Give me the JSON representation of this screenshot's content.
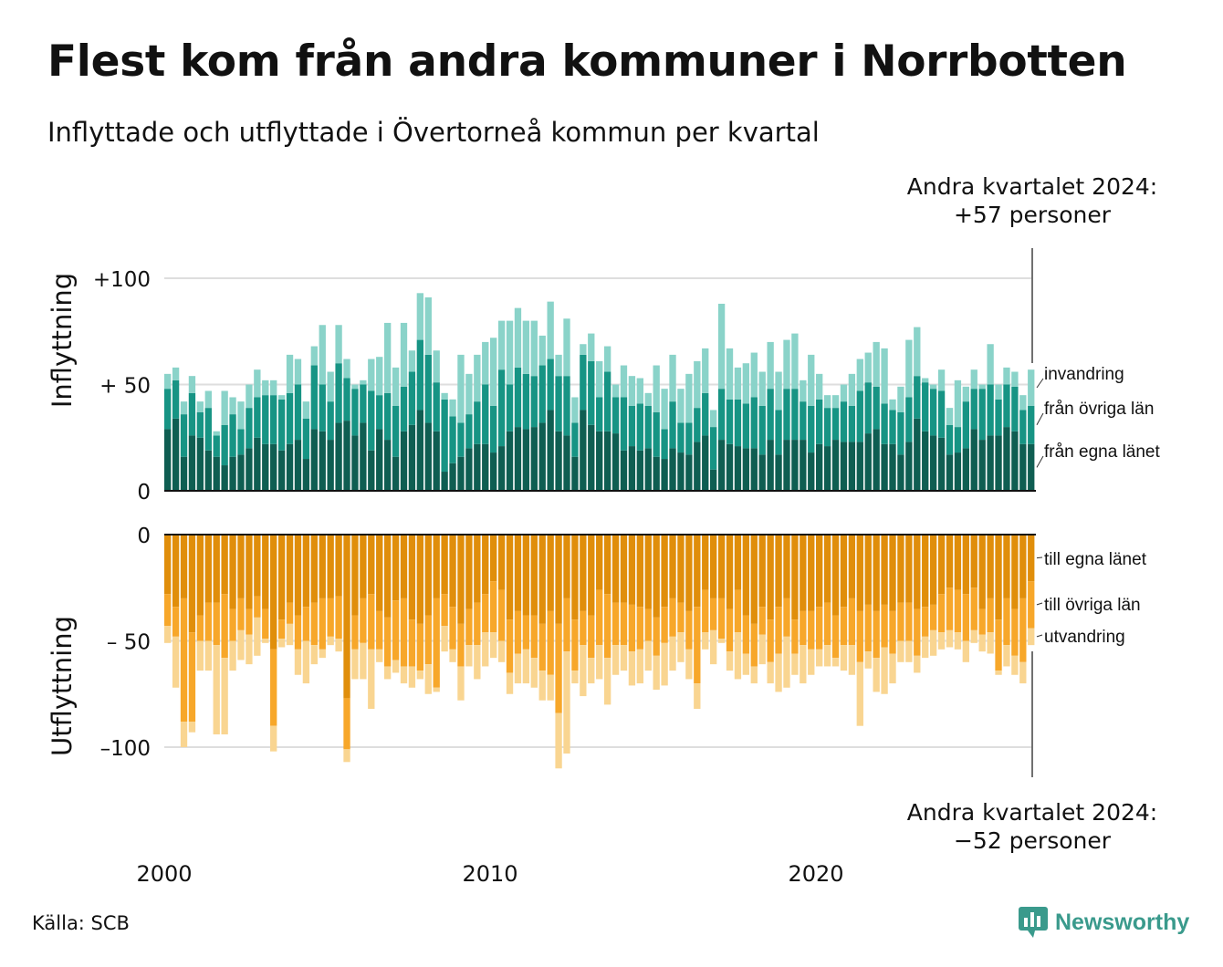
{
  "title": "Flest kom från andra kommuner i Norrbotten",
  "subtitle": "Inflyttade och utflyttade i Övertorneå kommun per kvartal",
  "source": "Källa: SCB",
  "brand": "Newsworthy",
  "colors": {
    "in_egna": "#0f5e52",
    "in_ovriga": "#179484",
    "in_invandring": "#8ad3c9",
    "out_egna": "#e08e0b",
    "out_ovriga": "#f7a72a",
    "out_utvandring": "#f9d591",
    "grid": "#dedede",
    "brand": "#3a9a8c"
  },
  "annotations": {
    "top": [
      "Andra kvartalet 2024:",
      "+57 personer"
    ],
    "bottom": [
      "Andra kvartalet 2024:",
      "−52 personer"
    ]
  },
  "chart_data": [
    {
      "type": "bar",
      "stacked": true,
      "ylabel": "Inflyttning",
      "ylim": [
        0,
        110
      ],
      "yticks": [
        0,
        50,
        100
      ],
      "ytick_labels": [
        "0",
        "+ 50",
        "+100"
      ],
      "grid": true,
      "series_labels_position": "right",
      "series": [
        {
          "name": "från egna länet",
          "values": [
            29,
            34,
            16,
            26,
            25,
            19,
            16,
            12,
            16,
            17,
            20,
            25,
            22,
            22,
            19,
            22,
            24,
            15,
            29,
            28,
            24,
            32,
            33,
            26,
            32,
            19,
            29,
            24,
            16,
            28,
            31,
            38,
            32,
            28,
            9,
            13,
            16,
            20,
            22,
            22,
            18,
            21,
            28,
            30,
            29,
            30,
            32,
            38,
            28,
            26,
            16,
            38,
            31,
            28,
            28,
            27,
            19,
            21,
            19,
            20,
            16,
            15,
            20,
            18,
            17,
            23,
            26,
            10,
            24,
            22,
            21,
            20,
            20,
            17,
            24,
            17,
            24,
            24,
            24,
            18,
            22,
            21,
            24,
            23,
            23,
            23,
            27,
            29,
            22,
            22,
            17,
            23,
            34,
            28,
            26,
            25,
            17,
            18,
            20,
            29,
            24,
            26,
            26,
            30,
            28,
            22,
            22
          ]
        },
        {
          "name": "från övriga län",
          "values": [
            19,
            18,
            20,
            20,
            12,
            20,
            10,
            19,
            20,
            12,
            19,
            19,
            23,
            23,
            24,
            24,
            26,
            19,
            30,
            22,
            18,
            28,
            20,
            22,
            18,
            28,
            16,
            22,
            24,
            21,
            25,
            33,
            32,
            23,
            34,
            22,
            16,
            16,
            20,
            28,
            22,
            36,
            22,
            28,
            26,
            24,
            27,
            24,
            26,
            28,
            16,
            26,
            30,
            16,
            28,
            17,
            25,
            19,
            22,
            20,
            21,
            14,
            22,
            14,
            15,
            16,
            20,
            20,
            24,
            21,
            22,
            21,
            24,
            23,
            24,
            21,
            24,
            24,
            18,
            22,
            21,
            18,
            15,
            19,
            17,
            24,
            24,
            20,
            19,
            16,
            20,
            21,
            20,
            23,
            22,
            22,
            14,
            12,
            22,
            19,
            24,
            24,
            17,
            20,
            21,
            16,
            18
          ]
        },
        {
          "name": "invandring",
          "values": [
            7,
            6,
            6,
            8,
            5,
            8,
            2,
            16,
            8,
            13,
            11,
            13,
            7,
            7,
            2,
            18,
            12,
            8,
            9,
            28,
            14,
            18,
            9,
            2,
            2,
            15,
            18,
            33,
            18,
            30,
            10,
            22,
            27,
            15,
            3,
            8,
            32,
            19,
            22,
            20,
            32,
            23,
            30,
            28,
            25,
            26,
            14,
            27,
            10,
            27,
            12,
            5,
            13,
            17,
            12,
            6,
            15,
            14,
            12,
            6,
            22,
            19,
            22,
            16,
            23,
            22,
            21,
            8,
            40,
            24,
            15,
            19,
            21,
            16,
            22,
            18,
            23,
            26,
            10,
            24,
            12,
            6,
            6,
            8,
            15,
            15,
            14,
            21,
            26,
            5,
            12,
            27,
            23,
            2,
            2,
            10,
            8,
            22,
            7,
            9,
            2,
            19,
            7,
            8,
            7,
            7,
            17
          ]
        }
      ]
    },
    {
      "type": "bar",
      "stacked": true,
      "ylabel": "Utflyttning",
      "ylim": [
        -115,
        0
      ],
      "yticks": [
        0,
        -50,
        -100
      ],
      "ytick_labels": [
        "0",
        "– 50",
        "–100"
      ],
      "grid": true,
      "series_labels_position": "right",
      "series": [
        {
          "name": "till egna länet",
          "values": [
            -28,
            -34,
            -30,
            -46,
            -38,
            -32,
            -32,
            -28,
            -35,
            -30,
            -35,
            -29,
            -35,
            -54,
            -40,
            -32,
            -38,
            -34,
            -32,
            -30,
            -30,
            -29,
            -77,
            -38,
            -30,
            -28,
            -36,
            -39,
            -31,
            -30,
            -40,
            -42,
            -38,
            -30,
            -28,
            -34,
            -42,
            -35,
            -32,
            -28,
            -22,
            -26,
            -40,
            -36,
            -38,
            -38,
            -42,
            -36,
            -42,
            -30,
            -40,
            -36,
            -38,
            -26,
            -28,
            -32,
            -32,
            -33,
            -34,
            -35,
            -39,
            -34,
            -30,
            -32,
            -36,
            -34,
            -26,
            -30,
            -30,
            -35,
            -26,
            -38,
            -42,
            -34,
            -40,
            -34,
            -30,
            -40,
            -36,
            -36,
            -34,
            -32,
            -38,
            -34,
            -30,
            -36,
            -33,
            -36,
            -33,
            -36,
            -32,
            -32,
            -35,
            -34,
            -33,
            -28,
            -25,
            -26,
            -28,
            -25,
            -35,
            -30,
            -40,
            -30,
            -35,
            -30,
            -22
          ]
        },
        {
          "name": "till övriga län",
          "values": [
            -15,
            -14,
            -58,
            -42,
            -12,
            -18,
            -20,
            -30,
            -15,
            -15,
            -12,
            -10,
            -14,
            -36,
            -9,
            -10,
            -16,
            -16,
            -20,
            -24,
            -18,
            -20,
            -24,
            -16,
            -21,
            -26,
            -18,
            -23,
            -28,
            -32,
            -22,
            -22,
            -23,
            -42,
            -15,
            -20,
            -20,
            -17,
            -20,
            -18,
            -24,
            -24,
            -25,
            -20,
            -16,
            -20,
            -22,
            -30,
            -42,
            -25,
            -24,
            -16,
            -20,
            -26,
            -30,
            -20,
            -20,
            -22,
            -20,
            -15,
            -18,
            -17,
            -18,
            -14,
            -18,
            -36,
            -20,
            -15,
            -19,
            -20,
            -20,
            -18,
            -20,
            -13,
            -20,
            -22,
            -18,
            -16,
            -16,
            -18,
            -20,
            -20,
            -20,
            -18,
            -22,
            -24,
            -22,
            -22,
            -20,
            -20,
            -18,
            -18,
            -22,
            -14,
            -12,
            -18,
            -20,
            -20,
            -22,
            -20,
            -12,
            -16,
            -24,
            -22,
            -22,
            -30,
            -22
          ]
        },
        {
          "name": "utvandring",
          "values": [
            -8,
            -24,
            -12,
            -5,
            -14,
            -14,
            -42,
            -36,
            -14,
            -14,
            -14,
            -18,
            -2,
            -12,
            -4,
            -10,
            -12,
            -20,
            -9,
            -4,
            -4,
            -6,
            -6,
            -14,
            -17,
            -28,
            -6,
            -6,
            -6,
            -8,
            -10,
            -4,
            -14,
            -2,
            -12,
            -6,
            -16,
            -10,
            -16,
            -16,
            -12,
            -10,
            -10,
            -14,
            -16,
            -14,
            -14,
            -12,
            -26,
            -48,
            -6,
            -24,
            -12,
            -16,
            -22,
            -14,
            -12,
            -16,
            -16,
            -14,
            -16,
            -20,
            -16,
            -14,
            -14,
            -12,
            -8,
            -16,
            -2,
            -9,
            -22,
            -10,
            -8,
            -14,
            -10,
            -18,
            -24,
            -10,
            -18,
            -12,
            -8,
            -10,
            -4,
            -12,
            -14,
            -30,
            -8,
            -16,
            -22,
            -14,
            -10,
            -10,
            -8,
            -10,
            -12,
            -8,
            -8,
            -8,
            -10,
            -6,
            -8,
            -10,
            -2,
            -10,
            -9,
            -10,
            -8
          ]
        }
      ]
    },
    {
      "type": "axis",
      "x_tick_labels": [
        "2000",
        "2010",
        "2020"
      ],
      "x_start_year": 2000,
      "quarters_per_year": 4
    }
  ]
}
